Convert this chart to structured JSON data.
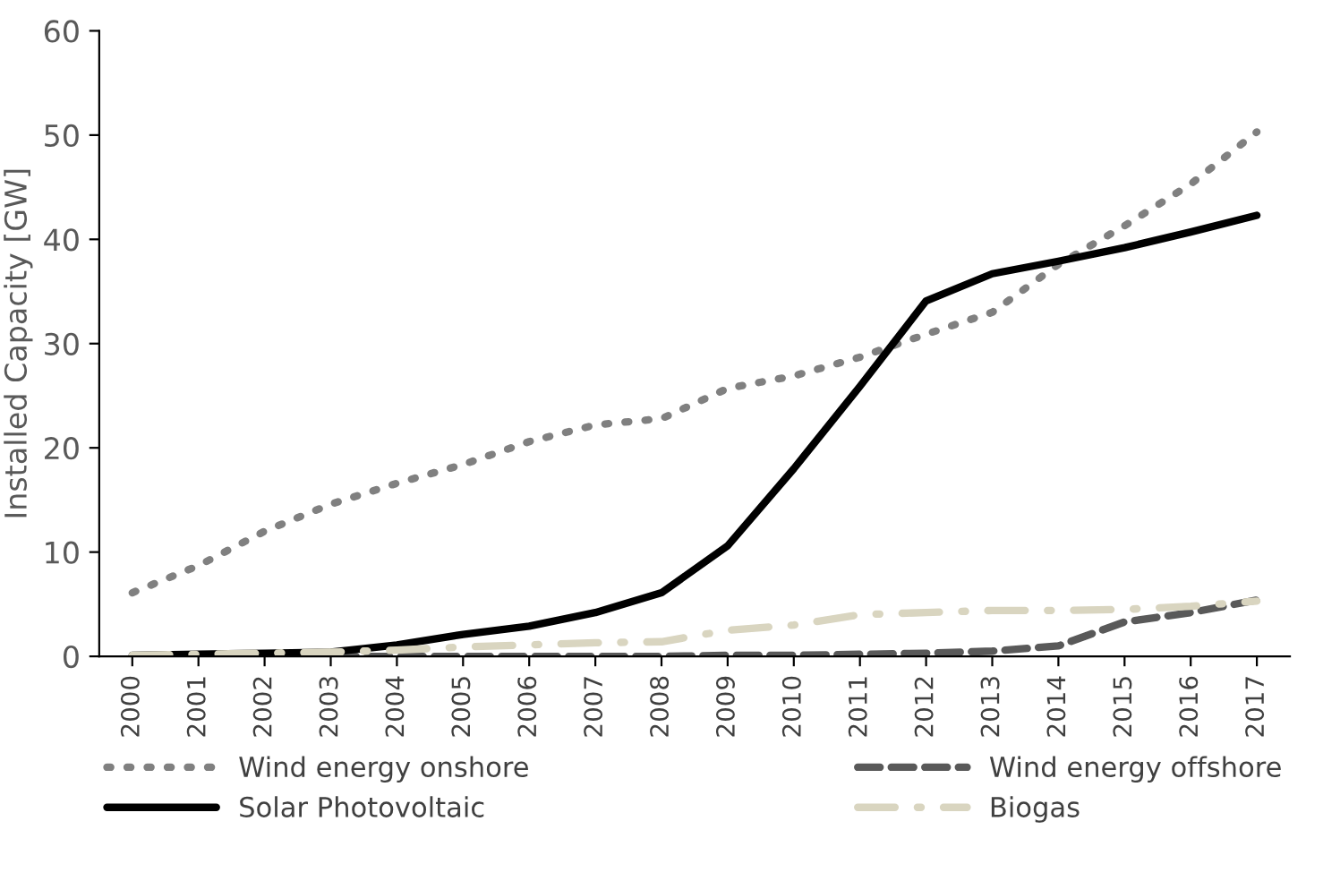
{
  "chart_data": {
    "type": "line",
    "ylabel": "Installed Capacity [GW]",
    "categories": [
      "2000",
      "2001",
      "2002",
      "2003",
      "2004",
      "2005",
      "2006",
      "2007",
      "2008",
      "2009",
      "2010",
      "2011",
      "2012",
      "2013",
      "2014",
      "2015",
      "2016",
      "2017"
    ],
    "series": [
      {
        "name": "Wind energy onshore",
        "color": "#808080",
        "line_style": "dotted",
        "values": [
          6.1,
          8.7,
          12.0,
          14.6,
          16.6,
          18.4,
          20.6,
          22.2,
          22.8,
          25.7,
          26.9,
          28.7,
          30.9,
          33.0,
          37.6,
          41.3,
          45.3,
          50.3
        ]
      },
      {
        "name": "Wind energy offshore",
        "color": "#595959",
        "line_style": "dashed",
        "values": [
          0,
          0,
          0,
          0,
          0,
          0,
          0,
          0,
          0,
          0.1,
          0.1,
          0.2,
          0.3,
          0.5,
          1.0,
          3.3,
          4.2,
          5.4
        ]
      },
      {
        "name": "Solar Photovoltaic",
        "color": "#000000",
        "line_style": "solid",
        "values": [
          0.1,
          0.2,
          0.3,
          0.4,
          1.1,
          2.1,
          2.9,
          4.2,
          6.1,
          10.6,
          18.0,
          25.9,
          34.1,
          36.7,
          37.9,
          39.2,
          40.7,
          42.3
        ]
      },
      {
        "name": "Biogas",
        "color": "#d9d5c0",
        "line_style": "dashdot",
        "values": [
          0.1,
          0.2,
          0.3,
          0.4,
          0.6,
          0.9,
          1.1,
          1.3,
          1.4,
          2.5,
          3.0,
          4.0,
          4.2,
          4.4,
          4.4,
          4.5,
          4.8,
          5.3
        ]
      }
    ],
    "ylim": [
      0,
      60
    ],
    "yticks": [
      0,
      10,
      20,
      30,
      40,
      50,
      60
    ],
    "grid": false,
    "legend": "bottom",
    "marker": "none"
  }
}
